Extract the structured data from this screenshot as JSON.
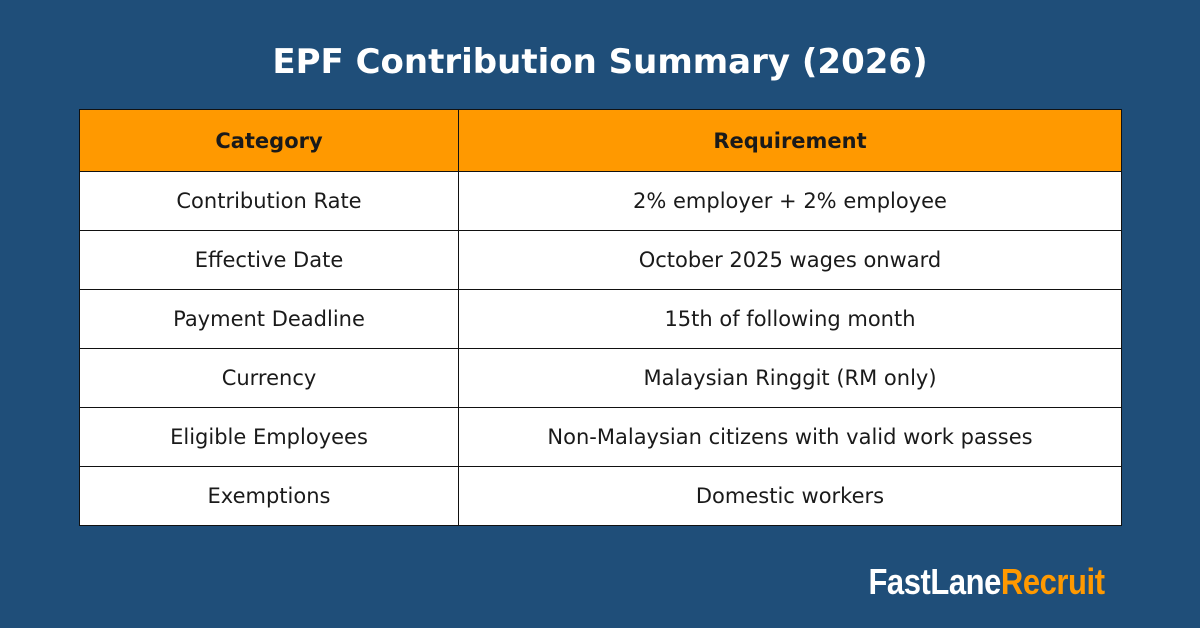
{
  "title": "EPF Contribution Summary (2026)",
  "table": {
    "headers": [
      "Category",
      "Requirement"
    ],
    "rows": [
      [
        "Contribution Rate",
        "2% employer + 2% employee"
      ],
      [
        "Effective Date",
        "October 2025 wages onward"
      ],
      [
        "Payment Deadline",
        "15th of following month"
      ],
      [
        "Currency",
        "Malaysian Ringgit (RM only)"
      ],
      [
        "Eligible Employees",
        "Non-Malaysian citizens with valid work passes"
      ],
      [
        "Exemptions",
        "Domestic workers"
      ]
    ]
  },
  "brand": {
    "part1": "FastLane",
    "part2": "Recruit"
  },
  "colors": {
    "background": "#1f4e79",
    "header_accent": "#ff9900",
    "text_white": "#ffffff"
  }
}
